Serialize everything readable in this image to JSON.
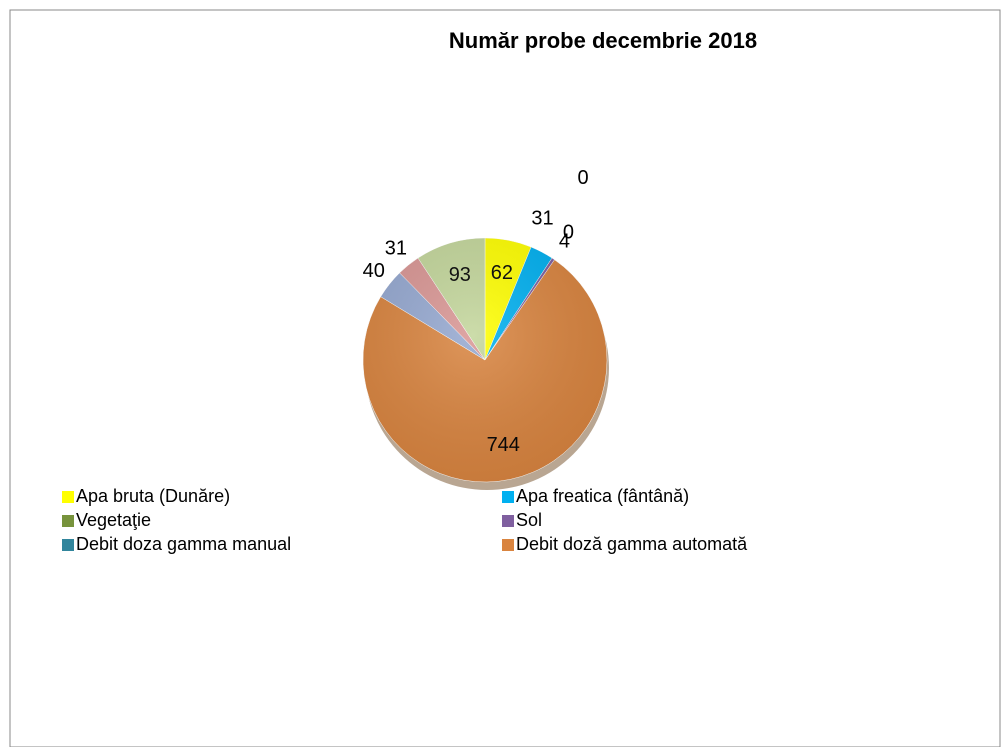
{
  "chart_data": {
    "type": "pie",
    "title": "Număr probe decembrie 2018",
    "categories": [
      "Apa bruta (Dunăre)",
      "Apa freatica (fântână)",
      "Vegetaţie",
      "Sol",
      "Debit  doza gamma manual",
      "Debit doză gamma automată",
      null,
      null,
      null
    ],
    "values": [
      62,
      31,
      0,
      4,
      0,
      744,
      40,
      31,
      93
    ],
    "colors": [
      "#ffff00",
      "#00b0f0",
      "#77933c",
      "#7f5f9f",
      "#31859c",
      "#d9843f",
      "#95a8d0",
      "#d99694",
      "#c3d69b"
    ],
    "legend": "bottom"
  }
}
